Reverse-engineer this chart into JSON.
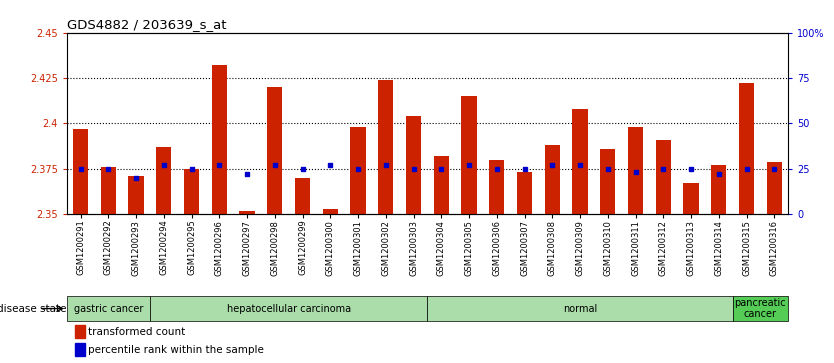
{
  "title": "GDS4882 / 203639_s_at",
  "samples": [
    "GSM1200291",
    "GSM1200292",
    "GSM1200293",
    "GSM1200294",
    "GSM1200295",
    "GSM1200296",
    "GSM1200297",
    "GSM1200298",
    "GSM1200299",
    "GSM1200300",
    "GSM1200301",
    "GSM1200302",
    "GSM1200303",
    "GSM1200304",
    "GSM1200305",
    "GSM1200306",
    "GSM1200307",
    "GSM1200308",
    "GSM1200309",
    "GSM1200310",
    "GSM1200311",
    "GSM1200312",
    "GSM1200313",
    "GSM1200314",
    "GSM1200315",
    "GSM1200316"
  ],
  "transformed_count": [
    2.397,
    2.376,
    2.371,
    2.387,
    2.375,
    2.432,
    2.352,
    2.42,
    2.37,
    2.353,
    2.398,
    2.424,
    2.404,
    2.382,
    2.415,
    2.38,
    2.373,
    2.388,
    2.408,
    2.386,
    2.398,
    2.391,
    2.367,
    2.377,
    2.422,
    2.379
  ],
  "percentile_rank": [
    25,
    25,
    20,
    27,
    25,
    27,
    22,
    27,
    25,
    27,
    25,
    27,
    25,
    25,
    27,
    25,
    25,
    27,
    27,
    25,
    23,
    25,
    25,
    22,
    25,
    25
  ],
  "ylim_left": [
    2.35,
    2.45
  ],
  "ylim_right": [
    0,
    100
  ],
  "yticks_left": [
    2.35,
    2.375,
    2.4,
    2.425,
    2.45
  ],
  "ytick_labels_left": [
    "2.35",
    "2.375",
    "2.4",
    "2.425",
    "2.45"
  ],
  "yticks_right": [
    0,
    25,
    50,
    75,
    100
  ],
  "ytick_labels_right": [
    "0",
    "25",
    "50",
    "75",
    "100%"
  ],
  "hlines": [
    2.375,
    2.4,
    2.425
  ],
  "baseline": 2.35,
  "bar_color": "#CC2200",
  "dot_color": "#0000CC",
  "bg_color": "#FFFFFF",
  "disease_groups": [
    {
      "label": "gastric cancer",
      "start": 0,
      "end": 3
    },
    {
      "label": "hepatocellular carcinoma",
      "start": 3,
      "end": 13
    },
    {
      "label": "normal",
      "start": 13,
      "end": 24
    },
    {
      "label": "pancreatic\ncancer",
      "start": 24,
      "end": 26
    }
  ],
  "group_colors": [
    "#AADDAA",
    "#AADDAA",
    "#AADDAA",
    "#55CC55"
  ],
  "bar_width": 0.55,
  "tick_label_fontsize": 7,
  "title_fontsize": 9.5
}
